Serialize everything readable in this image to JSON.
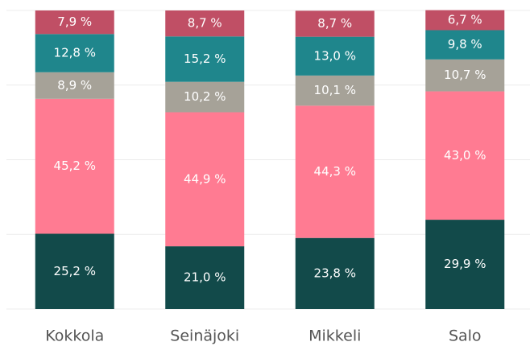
{
  "chart_data": {
    "type": "stacked_bar",
    "categories": [
      "Kokkola",
      "Seinäjoki",
      "Mikkeli",
      "Salo"
    ],
    "series": [
      {
        "color": "#124a4a",
        "values": [
          25.2,
          21.0,
          23.8,
          29.9
        ],
        "value_labels": [
          "25,2 %",
          "21,0 %",
          "23,8 %",
          "29,9 %"
        ]
      },
      {
        "color": "#ff7b92",
        "values": [
          45.2,
          44.9,
          44.3,
          43.0
        ],
        "value_labels": [
          "45,2 %",
          "44,9 %",
          "44,3 %",
          "43,0 %"
        ]
      },
      {
        "color": "#a6a298",
        "values": [
          8.9,
          10.2,
          10.1,
          10.7
        ],
        "value_labels": [
          "8,9 %",
          "10,2 %",
          "10,1 %",
          "10,7 %"
        ]
      },
      {
        "color": "#1f868c",
        "values": [
          12.8,
          15.2,
          13.0,
          9.8
        ],
        "value_labels": [
          "12,8 %",
          "15,2 %",
          "13,0 %",
          "9,8 %"
        ]
      },
      {
        "color": "#c04f65",
        "values": [
          7.9,
          8.7,
          8.7,
          6.7
        ],
        "value_labels": [
          "7,9 %",
          "8,7 %",
          "8,7 %",
          "6,7 %"
        ]
      }
    ],
    "ylim": [
      0,
      100
    ],
    "yticks": [
      0,
      25,
      50,
      75,
      100
    ],
    "grid": true
  }
}
